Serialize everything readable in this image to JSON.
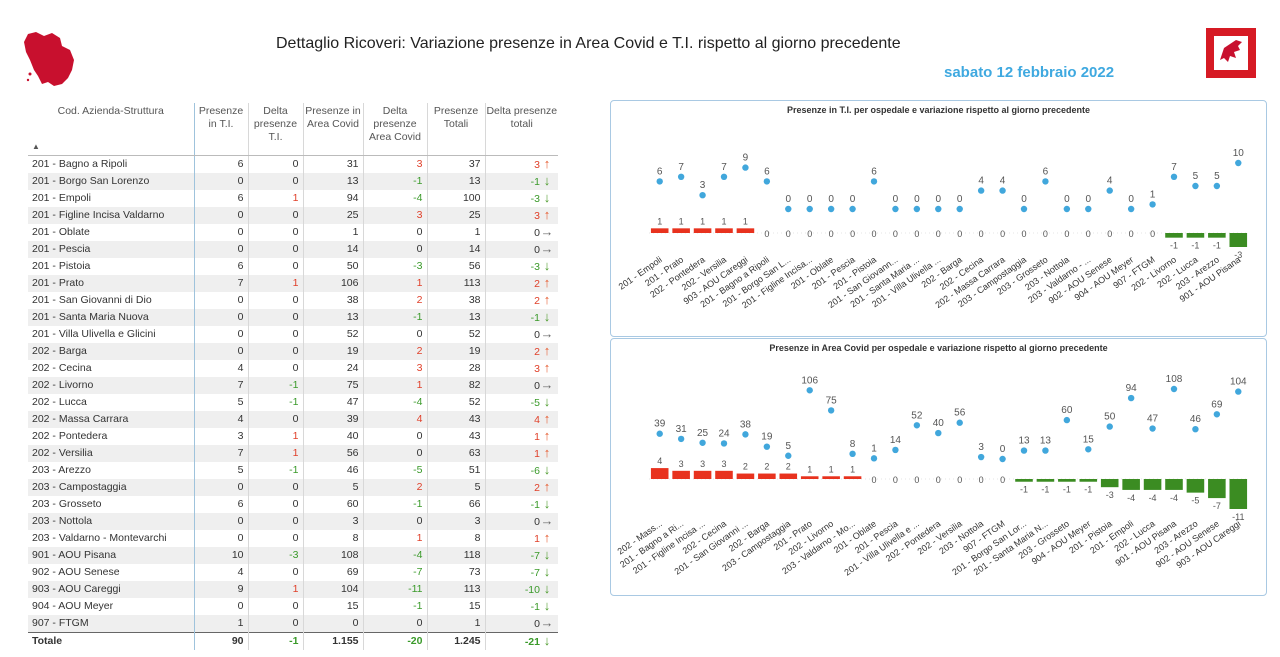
{
  "header": {
    "title": "Dettaglio Ricoveri: Variazione presenze in Area Covid e T.I. rispetto al giorno precedente",
    "date": "sabato 12 febbraio 2022"
  },
  "colors": {
    "up": "#e65a2e",
    "down": "#4a9a2a",
    "neutral": "#666666",
    "dot": "#41a7dc",
    "bar_pos": "#e8321e",
    "bar_neg": "#3b8c22",
    "accent": "#3fa9e0"
  },
  "table": {
    "headers": [
      "Cod. Azienda-Struttura",
      "Presenze in T.I.",
      "Delta presenze T.I.",
      "Presenze in Area Covid",
      "Delta presenze Area Covid",
      "Presenze Totali",
      "Delta presenze totali"
    ],
    "rows": [
      [
        "201 - Bagno a Ripoli",
        "6",
        "0",
        "31",
        "3",
        "37",
        "3",
        "up"
      ],
      [
        "201 - Borgo San Lorenzo",
        "0",
        "0",
        "13",
        "-1",
        "13",
        "-1",
        "down"
      ],
      [
        "201 - Empoli",
        "6",
        "1",
        "94",
        "-4",
        "100",
        "-3",
        "down"
      ],
      [
        "201 - Figline Incisa Valdarno",
        "0",
        "0",
        "25",
        "3",
        "25",
        "3",
        "up"
      ],
      [
        "201 - Oblate",
        "0",
        "0",
        "1",
        "0",
        "1",
        "0",
        "right"
      ],
      [
        "201 - Pescia",
        "0",
        "0",
        "14",
        "0",
        "14",
        "0",
        "right"
      ],
      [
        "201 - Pistoia",
        "6",
        "0",
        "50",
        "-3",
        "56",
        "-3",
        "down"
      ],
      [
        "201 - Prato",
        "7",
        "1",
        "106",
        "1",
        "113",
        "2",
        "up"
      ],
      [
        "201 - San Giovanni di Dio",
        "0",
        "0",
        "38",
        "2",
        "38",
        "2",
        "up"
      ],
      [
        "201 - Santa Maria Nuova",
        "0",
        "0",
        "13",
        "-1",
        "13",
        "-1",
        "down"
      ],
      [
        "201 - Villa Ulivella e Glicini",
        "0",
        "0",
        "52",
        "0",
        "52",
        "0",
        "right"
      ],
      [
        "202 - Barga",
        "0",
        "0",
        "19",
        "2",
        "19",
        "2",
        "up"
      ],
      [
        "202 - Cecina",
        "4",
        "0",
        "24",
        "3",
        "28",
        "3",
        "up"
      ],
      [
        "202 - Livorno",
        "7",
        "-1",
        "75",
        "1",
        "82",
        "0",
        "right"
      ],
      [
        "202 - Lucca",
        "5",
        "-1",
        "47",
        "-4",
        "52",
        "-5",
        "down"
      ],
      [
        "202 - Massa Carrara",
        "4",
        "0",
        "39",
        "4",
        "43",
        "4",
        "up"
      ],
      [
        "202 - Pontedera",
        "3",
        "1",
        "40",
        "0",
        "43",
        "1",
        "up"
      ],
      [
        "202 - Versilia",
        "7",
        "1",
        "56",
        "0",
        "63",
        "1",
        "up"
      ],
      [
        "203 - Arezzo",
        "5",
        "-1",
        "46",
        "-5",
        "51",
        "-6",
        "down"
      ],
      [
        "203 - Campostaggia",
        "0",
        "0",
        "5",
        "2",
        "5",
        "2",
        "up"
      ],
      [
        "203 - Grosseto",
        "6",
        "0",
        "60",
        "-1",
        "66",
        "-1",
        "down"
      ],
      [
        "203 - Nottola",
        "0",
        "0",
        "3",
        "0",
        "3",
        "0",
        "right"
      ],
      [
        "203 - Valdarno - Montevarchi",
        "0",
        "0",
        "8",
        "1",
        "8",
        "1",
        "up"
      ],
      [
        "901 - AOU Pisana",
        "10",
        "-3",
        "108",
        "-4",
        "118",
        "-7",
        "down"
      ],
      [
        "902 - AOU Senese",
        "4",
        "0",
        "69",
        "-7",
        "73",
        "-7",
        "down"
      ],
      [
        "903 - AOU Careggi",
        "9",
        "1",
        "104",
        "-11",
        "113",
        "-10",
        "down"
      ],
      [
        "904 - AOU Meyer",
        "0",
        "0",
        "15",
        "-1",
        "15",
        "-1",
        "down"
      ],
      [
        "907 - FTGM",
        "1",
        "0",
        "0",
        "0",
        "1",
        "0",
        "right"
      ]
    ],
    "total": [
      "Totale",
      "90",
      "-1",
      "1.155",
      "-20",
      "1.245",
      "-21",
      "down"
    ]
  },
  "chart_data": [
    {
      "type": "bar",
      "title": "Presenze in T.I. per ospedale e variazione rispetto al giorno precedente",
      "categories": [
        "201 - Empoli",
        "201 - Prato",
        "202 - Pontedera",
        "202 - Versilia",
        "903 - AOU Careggi",
        "201 - Bagno a Ripoli",
        "201 - Borgo San L...",
        "201 - Figline Incisa...",
        "201 - Oblate",
        "201 - Pescia",
        "201 - Pistoia",
        "201 - San Giovann...",
        "201 - Santa Maria ...",
        "201 - Villa Ulivella ...",
        "202 - Barga",
        "202 - Cecina",
        "202 - Massa Carrara",
        "203 - Campostaggia",
        "203 - Grosseto",
        "203 - Nottola",
        "203 - Valdarno - ...",
        "902 - AOU Senese",
        "904 - AOU Meyer",
        "907 - FTGM",
        "202 - Livorno",
        "202 - Lucca",
        "203 - Arezzo",
        "901 - AOU Pisana"
      ],
      "series": [
        {
          "values": [
            6,
            7,
            3,
            7,
            9,
            6,
            0,
            0,
            0,
            0,
            6,
            0,
            0,
            0,
            0,
            4,
            4,
            0,
            6,
            0,
            0,
            4,
            0,
            1,
            7,
            5,
            5,
            10
          ]
        },
        {
          "values": [
            1,
            1,
            1,
            1,
            1,
            0,
            0,
            0,
            0,
            0,
            0,
            0,
            0,
            0,
            0,
            0,
            0,
            0,
            0,
            0,
            0,
            0,
            0,
            0,
            -1,
            -1,
            -1,
            -3
          ]
        }
      ]
    },
    {
      "type": "bar",
      "title": "Presenze in Area Covid per ospedale e variazione rispetto al giorno precedente",
      "categories": [
        "202 - Mass...",
        "201 - Bagno a Ri...",
        "201 - Figline Incisa ...",
        "202 - Cecina",
        "201 - San Giovanni ...",
        "202 - Barga",
        "203 - Campostaggia",
        "201 - Prato",
        "202 - Livorno",
        "203 - Valdarno - Mo...",
        "201 - Oblate",
        "201 - Pescia",
        "201 - Villa Ulivella e ...",
        "202 - Pontedera",
        "202 - Versilia",
        "203 - Nottola",
        "907 - FTGM",
        "201 - Borgo San Lor...",
        "201 - Santa Maria N...",
        "203 - Grosseto",
        "904 - AOU Meyer",
        "201 - Pistoia",
        "201 - Empoli",
        "202 - Lucca",
        "901 - AOU Pisana",
        "203 - Arezzo",
        "902 - AOU Senese",
        "903 - AOU Careggi"
      ],
      "series": [
        {
          "values": [
            39,
            31,
            25,
            24,
            38,
            19,
            5,
            106,
            75,
            8,
            1,
            14,
            52,
            40,
            56,
            3,
            0,
            13,
            13,
            60,
            15,
            50,
            94,
            47,
            108,
            46,
            69,
            104
          ]
        },
        {
          "values": [
            4,
            3,
            3,
            3,
            2,
            2,
            2,
            1,
            1,
            1,
            0,
            0,
            0,
            0,
            0,
            0,
            0,
            -1,
            -1,
            -1,
            -1,
            -3,
            -4,
            -4,
            -4,
            -5,
            -7,
            -11
          ]
        }
      ]
    }
  ]
}
